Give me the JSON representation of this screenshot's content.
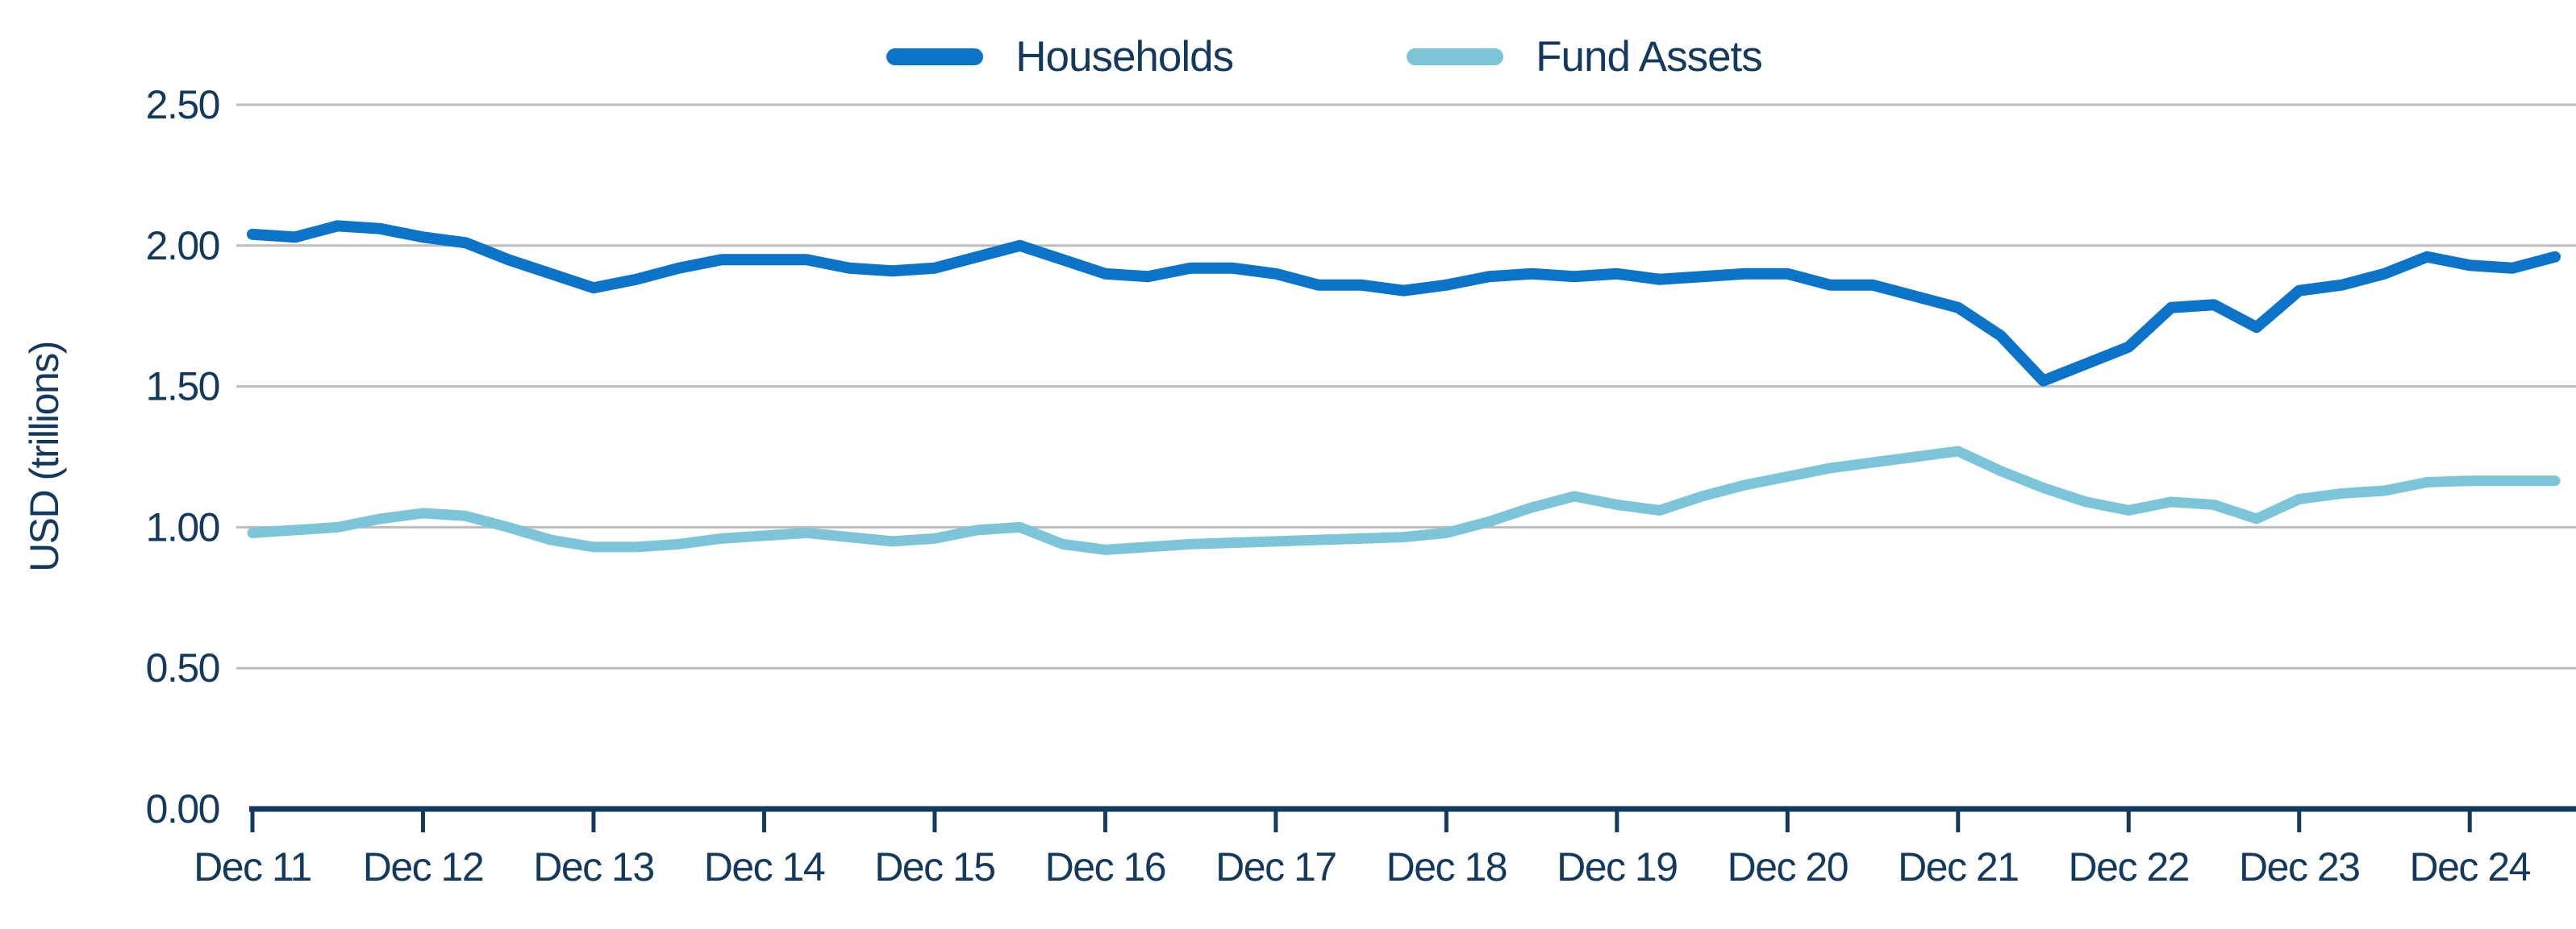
{
  "legend": {
    "items": [
      {
        "label": "Households",
        "color": "#0b74c8"
      },
      {
        "label": "Fund Assets",
        "color": "#7cc5d8"
      }
    ]
  },
  "axes": {
    "y_title": "USD (trillions)",
    "y_ticks": [
      "2.50",
      "2.00",
      "1.50",
      "1.00",
      "0.50",
      "0.00"
    ],
    "x_tick_labels": [
      "Dec 11",
      "Dec 12",
      "Dec 13",
      "Dec 14",
      "Dec 15",
      "Dec 16",
      "Dec 17",
      "Dec 18",
      "Dec 19",
      "Dec 20",
      "Dec 21",
      "Dec 22",
      "Dec 23",
      "Dec 24"
    ]
  },
  "style": {
    "grid_color": "#bcbcbc",
    "axis_color": "#14395e",
    "text_color": "#14395e",
    "background": "#ffffff"
  },
  "chart_data": {
    "type": "line",
    "title": "",
    "xlabel": "",
    "ylabel": "USD (trillions)",
    "ylim": [
      0,
      2.5
    ],
    "y_gridlines": [
      0.5,
      1.0,
      1.5,
      2.0,
      2.5
    ],
    "grid": true,
    "legend_position": "top-center",
    "x_unit": "quarterly",
    "x_range": "Dec 2011 to Jun 2025",
    "x_tick_labels": [
      "Dec 11",
      "Dec 12",
      "Dec 13",
      "Dec 14",
      "Dec 15",
      "Dec 16",
      "Dec 17",
      "Dec 18",
      "Dec 19",
      "Dec 20",
      "Dec 21",
      "Dec 22",
      "Dec 23",
      "Dec 24"
    ],
    "categories": [
      "Dec 11",
      "Mar 12",
      "Jun 12",
      "Sep 12",
      "Dec 12",
      "Mar 13",
      "Jun 13",
      "Sep 13",
      "Dec 13",
      "Mar 14",
      "Jun 14",
      "Sep 14",
      "Dec 14",
      "Mar 15",
      "Jun 15",
      "Sep 15",
      "Dec 15",
      "Mar 16",
      "Jun 16",
      "Sep 16",
      "Dec 16",
      "Mar 17",
      "Jun 17",
      "Sep 17",
      "Dec 17",
      "Mar 18",
      "Jun 18",
      "Sep 18",
      "Dec 18",
      "Mar 19",
      "Jun 19",
      "Sep 19",
      "Dec 19",
      "Mar 20",
      "Jun 20",
      "Sep 20",
      "Dec 20",
      "Mar 21",
      "Jun 21",
      "Sep 21",
      "Dec 21",
      "Mar 22",
      "Jun 22",
      "Sep 22",
      "Dec 22",
      "Mar 23",
      "Jun 23",
      "Sep 23",
      "Dec 23",
      "Mar 24",
      "Jun 24",
      "Sep 24",
      "Dec 24",
      "Mar 25",
      "Jun 25"
    ],
    "series": [
      {
        "name": "Households",
        "color": "#0b74c8",
        "line_width": 14,
        "values": [
          2.04,
          2.03,
          2.07,
          2.06,
          2.03,
          2.01,
          1.95,
          1.9,
          1.85,
          1.88,
          1.92,
          1.95,
          1.95,
          1.95,
          1.92,
          1.91,
          1.92,
          1.96,
          2.0,
          1.95,
          1.9,
          1.89,
          1.92,
          1.92,
          1.9,
          1.86,
          1.86,
          1.84,
          1.86,
          1.89,
          1.9,
          1.89,
          1.9,
          1.88,
          1.89,
          1.9,
          1.9,
          1.86,
          1.86,
          1.82,
          1.78,
          1.68,
          1.52,
          1.58,
          1.64,
          1.78,
          1.79,
          1.71,
          1.84,
          1.86,
          1.9,
          1.96,
          1.93,
          1.92,
          1.96
        ]
      },
      {
        "name": "Fund Assets",
        "color": "#7cc5d8",
        "line_width": 13,
        "values": [
          0.98,
          0.99,
          1.0,
          1.03,
          1.05,
          1.04,
          1.0,
          0.955,
          0.93,
          0.93,
          0.94,
          0.96,
          0.97,
          0.98,
          0.965,
          0.95,
          0.96,
          0.99,
          1.0,
          0.94,
          0.92,
          0.93,
          0.94,
          0.945,
          0.95,
          0.955,
          0.96,
          0.965,
          0.98,
          1.02,
          1.07,
          1.11,
          1.08,
          1.06,
          1.11,
          1.15,
          1.18,
          1.21,
          1.23,
          1.25,
          1.27,
          1.2,
          1.14,
          1.09,
          1.06,
          1.09,
          1.08,
          1.03,
          1.1,
          1.12,
          1.13,
          1.16,
          1.165,
          1.165,
          1.165
        ]
      }
    ]
  }
}
